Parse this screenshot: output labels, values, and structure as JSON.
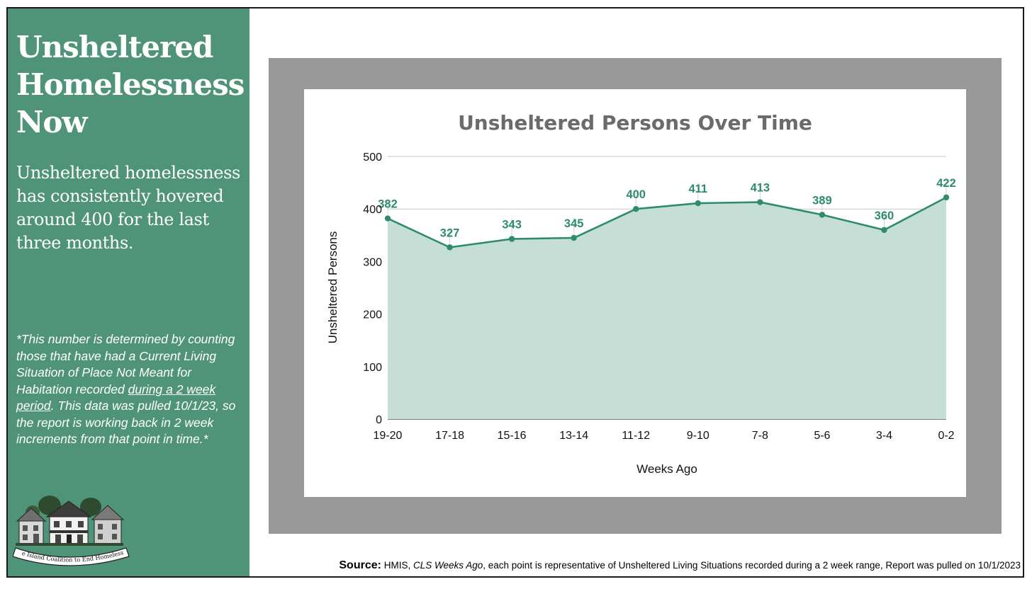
{
  "sidebar": {
    "title_lines": [
      "Unsheltered",
      "Homelessness",
      "Now"
    ],
    "subtitle": "Unsheltered homelessness has consistently hovered around 400 for the last three months.",
    "footnote_part1": "*This number is determined by counting those that have had a Current Living Situation of Place Not Meant for Habitation recorded ",
    "footnote_underlined": "during a 2 week period",
    "footnote_part2": ". This data was pulled 10/1/23, so the report is working back in 2 week increments from that point in time.*",
    "logo_text": "Rhode Island Coalition to End Homelessness"
  },
  "source": {
    "label": "Source:",
    "part1": " HMIS, ",
    "italic": "CLS Weeks Ago",
    "part2": ", each point is representative of Unsheltered Living Situations recorded during a 2 week range, Report was pulled on 10/1/2023"
  },
  "colors": {
    "sidebar_bg": "#4f9479",
    "line": "#2e8b6d",
    "area_fill": "#c5dfd7",
    "title": "#6b6b6b",
    "frame_gray": "#999999"
  },
  "chart_data": {
    "type": "area",
    "title": "Unsheltered Persons Over Time",
    "xlabel": "Weeks Ago",
    "ylabel": "Unsheltered Persons",
    "categories": [
      "19-20",
      "17-18",
      "15-16",
      "13-14",
      "11-12",
      "9-10",
      "7-8",
      "5-6",
      "3-4",
      "0-2"
    ],
    "values": [
      382,
      327,
      343,
      345,
      400,
      411,
      413,
      389,
      360,
      422
    ],
    "ylim": [
      0,
      500
    ],
    "yticks": [
      0,
      100,
      200,
      300,
      400,
      500
    ],
    "grid": true,
    "data_labels": true
  }
}
